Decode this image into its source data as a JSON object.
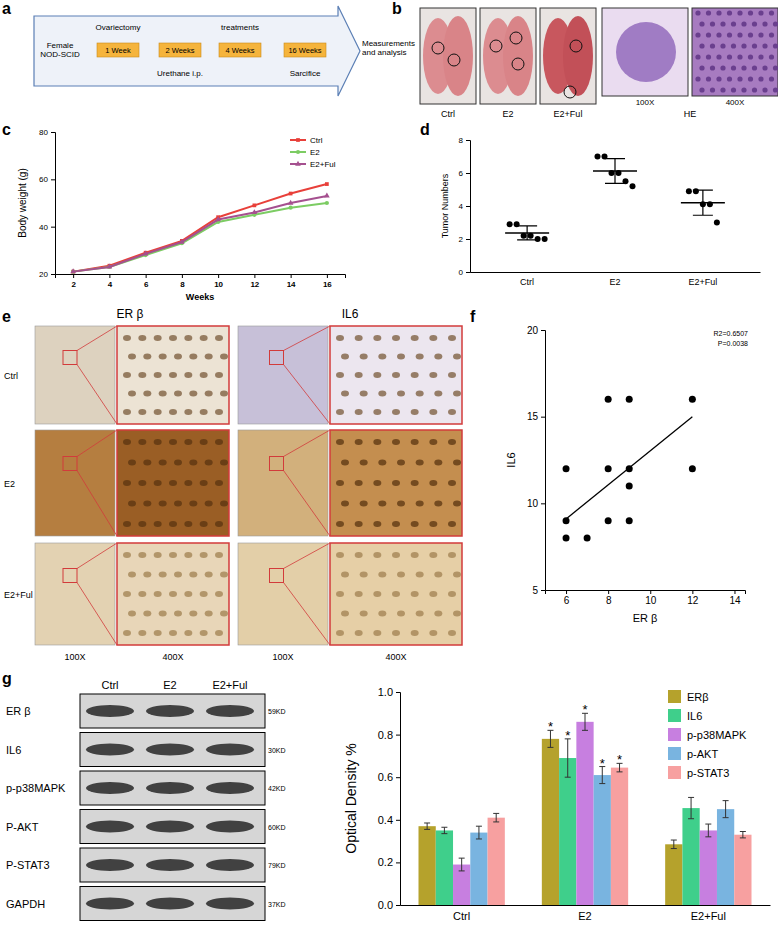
{
  "panel_labels": [
    "a",
    "b",
    "c",
    "d",
    "e",
    "f",
    "g"
  ],
  "diagram": {
    "start": "Female NOD-SCID",
    "end": "Measurements and analysis",
    "steps": [
      {
        "label": "1 Week",
        "above": "Ovariectomy"
      },
      {
        "label": "2 Weeks",
        "below": "Urethane i.p."
      },
      {
        "label": "4 Weeks",
        "above": "treatments"
      },
      {
        "label": "16 Weeks",
        "below": "Sarcifice"
      }
    ]
  },
  "lung_photos": {
    "labels": [
      "Ctrl",
      "E2",
      "E2+Ful"
    ],
    "he_labels": [
      "100X",
      "400X"
    ],
    "he_title": "HE"
  },
  "ihc": {
    "columns": [
      "ER β",
      "IL6"
    ],
    "rows": [
      "Ctrl",
      "E2",
      "E2+Ful"
    ],
    "magnifications": [
      "100X",
      "400X"
    ]
  },
  "blot": {
    "columns": [
      "Ctrl",
      "E2",
      "E2+Ful"
    ],
    "rows": [
      {
        "label": "ER β",
        "size": "59KD"
      },
      {
        "label": "IL6",
        "size": "30KD"
      },
      {
        "label": "p-p38MAPK",
        "size": "42KD"
      },
      {
        "label": "P-AKT",
        "size": "60KD"
      },
      {
        "label": "P-STAT3",
        "size": "79KD"
      },
      {
        "label": "GAPDH",
        "size": "37KD"
      }
    ]
  },
  "chart_data": [
    {
      "type": "line",
      "x_label": "Weeks",
      "y_label": "Body weight (g)",
      "x": [
        2,
        4,
        6,
        8,
        10,
        12,
        14,
        16
      ],
      "xlim": [
        1,
        17
      ],
      "xticks": [
        2,
        4,
        6,
        8,
        10,
        12,
        14,
        16
      ],
      "ylim": [
        20,
        80
      ],
      "yticks": [
        20,
        40,
        60,
        80
      ],
      "legend": "top-right",
      "series": [
        {
          "name": "Ctrl",
          "color": "#e8403a",
          "marker": "square",
          "values": [
            21,
            23.5,
            29,
            34,
            44,
            49,
            54,
            58
          ]
        },
        {
          "name": "E2",
          "color": "#7ccc63",
          "marker": "circle",
          "values": [
            21,
            23,
            28,
            33,
            42,
            45,
            48,
            50
          ]
        },
        {
          "name": "E2+Ful",
          "color": "#a5508f",
          "marker": "triangle",
          "values": [
            21,
            23,
            28.5,
            33.5,
            43,
            46,
            50,
            53
          ]
        }
      ]
    },
    {
      "type": "scatter",
      "y_label": "Tumor Numbers",
      "categories": [
        "Ctrl",
        "E2",
        "E2+Ful"
      ],
      "ylim": [
        0,
        8
      ],
      "yticks": [
        0,
        2,
        4,
        6,
        8
      ],
      "color": "#000000",
      "values": [
        [
          2.9,
          2.9,
          2.2,
          2.2,
          2,
          2
        ],
        [
          7,
          7,
          6,
          6,
          5.5,
          5.2
        ],
        [
          4.9,
          4.9,
          4.1,
          4.1,
          3
        ]
      ],
      "means": [
        2.37,
        6.12,
        4.2
      ],
      "errors": [
        0.42,
        0.75,
        0.76
      ]
    },
    {
      "type": "scatter",
      "x_label": "ER β",
      "y_label": "IL6",
      "x": [
        6,
        6,
        6,
        7,
        8,
        8,
        8,
        9,
        9,
        9,
        9,
        12,
        12
      ],
      "values": [
        8,
        9,
        12,
        8,
        9,
        12,
        16,
        9,
        11,
        12,
        16,
        12,
        16
      ],
      "xlim": [
        5,
        14.5
      ],
      "xticks": [
        6,
        8,
        10,
        12,
        14
      ],
      "ylim": [
        5,
        20
      ],
      "yticks": [
        5,
        10,
        15,
        20
      ],
      "color": "#000000",
      "annotations": [
        "R2=0.6507",
        "P=0.0038"
      ],
      "fit_line": {
        "x": [
          6,
          12
        ],
        "y": [
          9.1,
          15
        ]
      }
    },
    {
      "type": "bar",
      "y_label": "Optical Density %",
      "categories": [
        "Ctrl",
        "E2",
        "E2+Ful"
      ],
      "ylim": [
        0,
        1
      ],
      "yticks": [
        {
          "value": 0,
          "label": "0.0"
        },
        0.2,
        0.4,
        0.6,
        0.8,
        {
          "value": 1,
          "label": "1.0"
        }
      ],
      "legend": "top-right",
      "series": [
        {
          "name": "ERβ",
          "color": "#b5a22c",
          "values": [
            0.37,
            0.78,
            0.285
          ],
          "errors": [
            0.015,
            0.04,
            0.02
          ]
        },
        {
          "name": "IL6",
          "color": "#3fcf8b",
          "values": [
            0.35,
            0.69,
            0.455
          ],
          "errors": [
            0.015,
            0.09,
            0.05
          ]
        },
        {
          "name": "p-p38MAPK",
          "color": "#c77fe0",
          "values": [
            0.19,
            0.86,
            0.35
          ],
          "errors": [
            0.03,
            0.04,
            0.03
          ]
        },
        {
          "name": "p-AKT",
          "color": "#79b4e0",
          "values": [
            0.34,
            0.61,
            0.45
          ],
          "errors": [
            0.03,
            0.04,
            0.04
          ]
        },
        {
          "name": "p-STAT3",
          "color": "#f7a0a0",
          "values": [
            0.41,
            0.645,
            0.33
          ],
          "errors": [
            0.02,
            0.02,
            0.015
          ]
        }
      ],
      "annotations": [
        {
          "text": "*",
          "series": 0,
          "category": 1
        },
        {
          "text": "*",
          "series": 1,
          "category": 1
        },
        {
          "text": "*",
          "series": 2,
          "category": 1
        },
        {
          "text": "*",
          "series": 3,
          "category": 1
        },
        {
          "text": "*",
          "series": 4,
          "category": 1
        }
      ]
    }
  ]
}
